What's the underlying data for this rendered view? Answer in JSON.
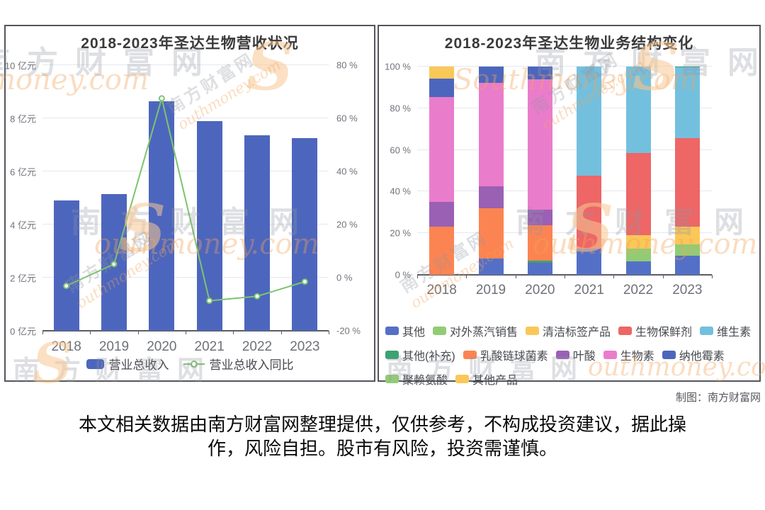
{
  "page": {
    "credit": "制图：南方财富网",
    "disclaimer": [
      "本文相关数据由南方财富网整理提供，仅供参考，不构成投资建议，据此操",
      "作，风险自担。股市有风险，投资需谨慎。"
    ],
    "watermarks": {
      "cjk": "南方财富网",
      "latin": "Southmoney.com",
      "latin_cut": "outhmoney.com",
      "swoosh": "S"
    }
  },
  "chart_data": [
    {
      "type": "bar",
      "title": "2018-2023年圣达生物营收状况",
      "categories": [
        "2018",
        "2019",
        "2020",
        "2021",
        "2022",
        "2023"
      ],
      "series": [
        {
          "name": "营业总收入",
          "type": "bar",
          "axis": "left",
          "unit": "亿元",
          "color": "#4d66bd",
          "values": [
            4.9,
            5.15,
            8.65,
            7.9,
            7.35,
            7.25
          ]
        },
        {
          "name": "营业总收入同比",
          "type": "line",
          "axis": "right",
          "unit": "%",
          "color": "#7cc46c",
          "values": [
            -3.1,
            5.1,
            67.5,
            -8.7,
            -7.0,
            -1.5
          ]
        }
      ],
      "left_axis": {
        "min": 0,
        "max": 10,
        "step": 2,
        "unit": "亿元",
        "labels": [
          "0 亿元",
          "2 亿元",
          "4 亿元",
          "6 亿元",
          "8 亿元",
          "10 亿元"
        ]
      },
      "right_axis": {
        "min": -20,
        "max": 80,
        "step": 20,
        "unit": "%",
        "labels": [
          "-20 %",
          "0 %",
          "20 %",
          "40 %",
          "60 %",
          "80 %"
        ]
      },
      "grid": true,
      "legend_position": "bottom"
    },
    {
      "type": "bar",
      "subtype": "stacked-100-percent",
      "title": "2018-2023年圣达生物业务结构变化",
      "categories": [
        "2018",
        "2019",
        "2020",
        "2021",
        "2022",
        "2023"
      ],
      "y_axis": {
        "min": 0,
        "max": 100,
        "step": 20,
        "unit": "%",
        "labels": [
          "0 %",
          "20 %",
          "40 %",
          "60 %",
          "80 %",
          "100 %"
        ]
      },
      "series": [
        {
          "name": "其他",
          "color": "#5470c6",
          "values": [
            0,
            7.9,
            5.9,
            12.7,
            6.3,
            9.1
          ]
        },
        {
          "name": "对外蒸汽销售",
          "color": "#91cc75",
          "values": [
            0,
            0,
            0,
            0,
            6.4,
            5.5
          ]
        },
        {
          "name": "清洁标签产品",
          "color": "#fac858",
          "values": [
            0,
            0,
            0,
            0,
            6.2,
            8.5
          ]
        },
        {
          "name": "生物保鲜剂",
          "color": "#ee6666",
          "values": [
            0,
            0,
            0,
            34.9,
            39.7,
            42.4
          ]
        },
        {
          "name": "维生素",
          "color": "#73c0de",
          "values": [
            0,
            0,
            0,
            52.4,
            41.4,
            34.0
          ]
        },
        {
          "name": "其他(补充)",
          "color": "#3ba272",
          "values": [
            0,
            0,
            0.8,
            0,
            0,
            0.5
          ]
        },
        {
          "name": "乳酸链球菌素",
          "color": "#fc8452",
          "values": [
            23.0,
            24.2,
            17.0,
            0,
            0,
            0
          ]
        },
        {
          "name": "叶酸",
          "color": "#9a60b4",
          "values": [
            12.0,
            10.5,
            7.7,
            0,
            0,
            0
          ]
        },
        {
          "name": "生物素",
          "color": "#ea7ccc",
          "values": [
            50.5,
            49.5,
            62.6,
            0,
            0,
            0
          ]
        },
        {
          "name": "纳他霉素",
          "color": "#4d66bd",
          "values": [
            8.7,
            7.9,
            6.0,
            0,
            0,
            0
          ]
        },
        {
          "name": "聚赖氨酸",
          "color": "#91cc75",
          "values": [
            0,
            0,
            0,
            0,
            0,
            0
          ]
        },
        {
          "name": "其他产品",
          "color": "#fac858",
          "values": [
            5.8,
            0,
            0,
            0,
            0,
            0
          ]
        }
      ],
      "legend_rows": [
        [
          "其他",
          "对外蒸汽销售",
          "清洁标签产品",
          "生物保鲜剂",
          "维生素"
        ],
        [
          "其他(补充)",
          "乳酸链球菌素",
          "叶酸",
          "生物素",
          "纳他霉素"
        ],
        [
          "聚赖氨酸",
          "其他产品"
        ]
      ],
      "legend_position": "bottom-left",
      "grid": true
    }
  ]
}
